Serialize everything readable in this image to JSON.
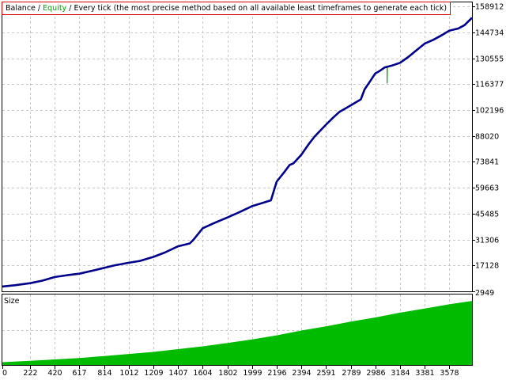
{
  "legend": {
    "balance": "Balance",
    "sep1": " / ",
    "equity": "Equity",
    "sep2": " / ",
    "method": "Every tick (the most precise method based on all available least timeframes to generate each tick)"
  },
  "colors": {
    "balance": "#00008b",
    "equity": "#00a000",
    "size": "#00bb00",
    "grid": "#c8c8c8",
    "legend_border": "#e00000"
  },
  "chart_data": [
    {
      "type": "line",
      "title": "",
      "series": [
        {
          "name": "Balance",
          "x": [
            0,
            100,
            222,
            320,
            420,
            520,
            617,
            720,
            814,
            900,
            1012,
            1100,
            1209,
            1300,
            1407,
            1500,
            1530,
            1604,
            1700,
            1802,
            1900,
            1999,
            2080,
            2150,
            2196,
            2260,
            2300,
            2330,
            2394,
            2450,
            2500,
            2591,
            2650,
            2700,
            2789,
            2870,
            2900,
            2950,
            2986,
            3020,
            3060,
            3120,
            3184,
            3250,
            3300,
            3381,
            3450,
            3520,
            3578,
            3650,
            3700,
            3760
          ],
          "y": [
            5600,
            6300,
            7400,
            8800,
            10800,
            11800,
            12600,
            14200,
            15800,
            17200,
            18600,
            19600,
            21800,
            24200,
            27600,
            29200,
            31200,
            37500,
            40500,
            43400,
            46400,
            49600,
            51300,
            52800,
            63000,
            68500,
            72200,
            73000,
            77800,
            83300,
            87700,
            94200,
            98200,
            101300,
            104800,
            108100,
            113500,
            118600,
            122300,
            123600,
            125500,
            126600,
            128100,
            131300,
            134100,
            138600,
            140700,
            143300,
            145700,
            146900,
            148700,
            152800
          ]
        },
        {
          "name": "Equity",
          "x": [
            3080,
            3081,
            3082
          ],
          "y": [
            126000,
            116800,
            125800
          ]
        }
      ],
      "y_tick_labels": [
        "158912",
        "144734",
        "130555",
        "116377",
        "102196",
        "88020",
        "73841",
        "59663",
        "45485",
        "31306",
        "17128",
        "2949"
      ],
      "ylim": [
        2949,
        161200
      ],
      "xlim": [
        0,
        3760
      ],
      "grid": true
    },
    {
      "type": "area",
      "title": "Size",
      "x_tick_labels": [
        "0",
        "222",
        "420",
        "617",
        "814",
        "1012",
        "1209",
        "1407",
        "1604",
        "1802",
        "1999",
        "2196",
        "2394",
        "2591",
        "2789",
        "2986",
        "3184",
        "3381",
        "3578"
      ],
      "x": [
        0,
        222,
        420,
        617,
        814,
        1012,
        1209,
        1407,
        1604,
        1802,
        1999,
        2196,
        2394,
        2591,
        2789,
        2986,
        3184,
        3381,
        3578,
        3760
      ],
      "y": [
        0.04,
        0.06,
        0.08,
        0.1,
        0.13,
        0.16,
        0.19,
        0.23,
        0.27,
        0.32,
        0.37,
        0.43,
        0.5,
        0.56,
        0.63,
        0.69,
        0.76,
        0.82,
        0.88,
        0.93
      ],
      "grid": true
    }
  ]
}
